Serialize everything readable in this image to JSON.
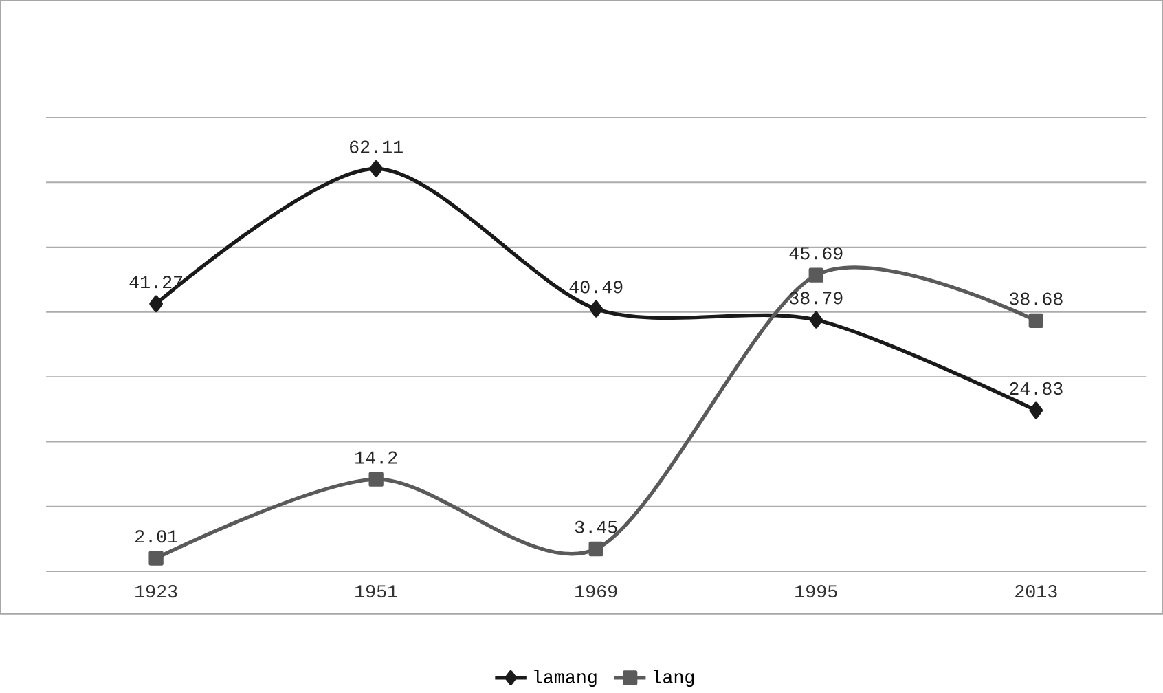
{
  "chart_data": {
    "type": "line",
    "categories": [
      "1923",
      "1951",
      "1969",
      "1995",
      "2013"
    ],
    "series": [
      {
        "name": "lamang",
        "color": "#1a1a1a",
        "marker": "diamond",
        "values": [
          41.27,
          62.11,
          40.49,
          38.79,
          24.83
        ]
      },
      {
        "name": "lang",
        "color": "#5a5a5a",
        "marker": "square",
        "values": [
          2.01,
          14.2,
          3.45,
          45.69,
          38.68
        ]
      }
    ],
    "ylim": [
      0,
      70
    ],
    "yticks": [
      {
        "value": 0,
        "label": null
      },
      {
        "value": 10,
        "label": null
      },
      {
        "value": 20,
        "label": null
      },
      {
        "value": 30,
        "label": null
      },
      {
        "value": 40,
        "label": null
      },
      {
        "value": 50,
        "label": null
      },
      {
        "value": 60,
        "label": null
      },
      {
        "value": 70,
        "label": null
      }
    ],
    "grid": "y",
    "tick_labels": "x",
    "data_labels": true,
    "legend": "bottom"
  }
}
